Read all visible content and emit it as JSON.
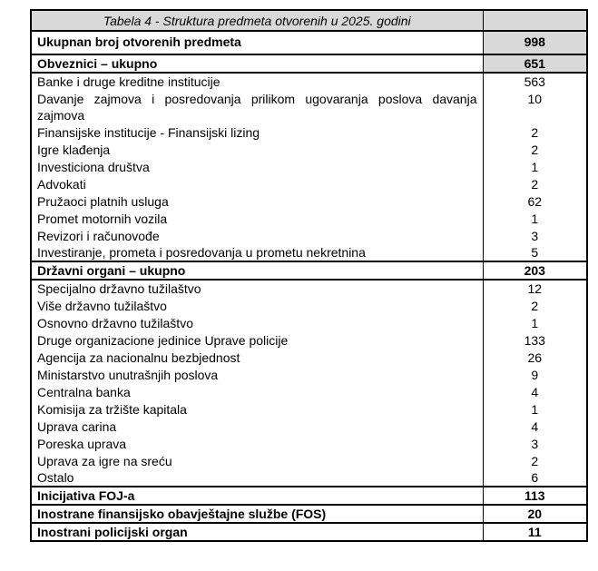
{
  "table": {
    "shading_color": "#d9d9d9",
    "border_color": "#000000",
    "rows": [
      {
        "type": "title",
        "label": "Tabela 4 - Struktura predmeta otvorenih u 2025. godini",
        "value": ""
      },
      {
        "type": "grand",
        "label": "Ukupnan broj otvorenih predmeta",
        "value": "998"
      },
      {
        "type": "section-shaded",
        "label": "Obveznici – ukupno",
        "value": "651"
      },
      {
        "type": "detail",
        "label": "Banke i druge kreditne institucije",
        "value": "563"
      },
      {
        "type": "detail-justify",
        "label": "Davanje zajmova i posredovanja prilikom ugovaranja poslova davanja zajmova",
        "value": "10"
      },
      {
        "type": "detail",
        "label": "Finansijske institucije - Finansijski lizing",
        "value": "2"
      },
      {
        "type": "detail",
        "label": "Igre klađenja",
        "value": "2"
      },
      {
        "type": "detail",
        "label": "Investiciona društva",
        "value": "1"
      },
      {
        "type": "detail",
        "label": "Advokati",
        "value": "2"
      },
      {
        "type": "detail",
        "label": "Pružaoci platnih usluga",
        "value": "62"
      },
      {
        "type": "detail",
        "label": "Promet motornih vozila",
        "value": "1"
      },
      {
        "type": "detail",
        "label": "Revizori i računovođe",
        "value": "3"
      },
      {
        "type": "detail",
        "label": "Investiranje, prometa i posredovanja u prometu nekretnina",
        "value": "5"
      },
      {
        "type": "section",
        "label": "Državni organi – ukupno",
        "value": "203"
      },
      {
        "type": "detail",
        "label": "Specijalno državno tužilaštvo",
        "value": "12"
      },
      {
        "type": "detail",
        "label": "Više državno tužilaštvo",
        "value": "2"
      },
      {
        "type": "detail",
        "label": "Osnovno državno tužilaštvo",
        "value": "1"
      },
      {
        "type": "detail",
        "label": "Druge organizacione jedinice Uprave policije",
        "value": "133"
      },
      {
        "type": "detail",
        "label": "Agencija za nacionalnu bezbjednost",
        "value": "26"
      },
      {
        "type": "detail",
        "label": "Ministarstvo unutrašnjih poslova",
        "value": "9"
      },
      {
        "type": "detail",
        "label": "Centralna banka",
        "value": "4"
      },
      {
        "type": "detail",
        "label": "Komisija za tržište kapitala",
        "value": "1"
      },
      {
        "type": "detail",
        "label": "Uprava carina",
        "value": "4"
      },
      {
        "type": "detail",
        "label": "Poreska uprava",
        "value": "3"
      },
      {
        "type": "detail",
        "label": "Uprava za igre na sreću",
        "value": "2"
      },
      {
        "type": "detail",
        "label": "Ostalo",
        "value": "6"
      },
      {
        "type": "section",
        "label": "Inicijativa FOJ-a",
        "value": "113"
      },
      {
        "type": "section",
        "label": "Inostrane finansijsko obavještajne službe (FOS)",
        "value": "20"
      },
      {
        "type": "section",
        "label": "Inostrani policijski organ",
        "value": "11"
      }
    ]
  }
}
